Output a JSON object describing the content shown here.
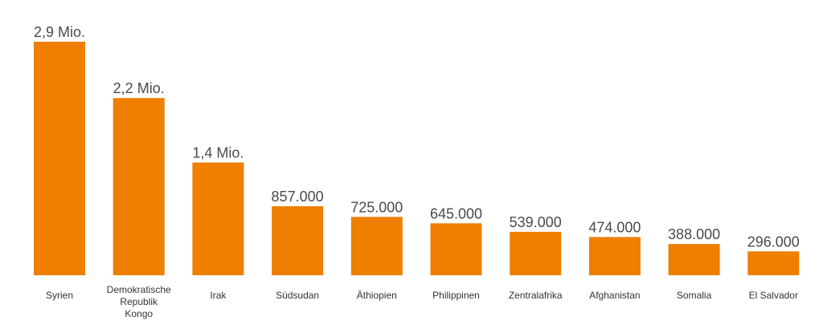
{
  "chart_data": {
    "type": "bar",
    "categories": [
      "Syrien",
      "Demokratische Republik Kongo",
      "Irak",
      "Südsudan",
      "Äthiopien",
      "Philippinen",
      "Zentralafrika",
      "Afghanistan",
      "Somalia",
      "El Salvador"
    ],
    "category_lines": [
      [
        "Syrien"
      ],
      [
        "Demokratische",
        "Republik",
        "Kongo"
      ],
      [
        "Irak"
      ],
      [
        "Südsudan"
      ],
      [
        "Äthiopien"
      ],
      [
        "Philippinen"
      ],
      [
        "Zentralafrika"
      ],
      [
        "Afghanistan"
      ],
      [
        "Somalia"
      ],
      [
        "El Salvador"
      ]
    ],
    "values": [
      2900000,
      2200000,
      1400000,
      857000,
      725000,
      645000,
      539000,
      474000,
      388000,
      296000
    ],
    "value_labels": [
      "2,9 Mio.",
      "2,2 Mio.",
      "1,4 Mio.",
      "857.000",
      "725.000",
      "645.000",
      "539.000",
      "474.000",
      "388.000",
      "296.000"
    ],
    "ylim": [
      0,
      2900000
    ],
    "grid": false,
    "legend": "none",
    "bar_color": "#EE7F00",
    "title": "",
    "xlabel": "",
    "ylabel": ""
  }
}
